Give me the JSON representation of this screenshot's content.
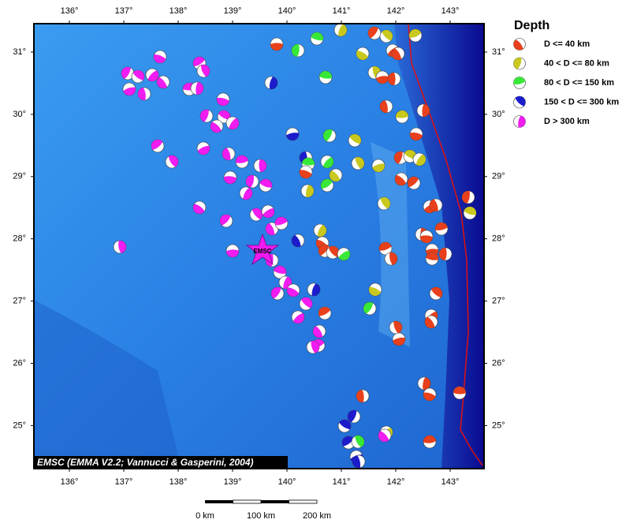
{
  "map": {
    "lon_labels": [
      "136°",
      "137°",
      "138°",
      "139°",
      "140°",
      "141°",
      "142°",
      "143°"
    ],
    "lat_labels": [
      "31°",
      "30°",
      "29°",
      "28°",
      "27°",
      "26°",
      "25°"
    ],
    "legend": {
      "title": "Depth",
      "items": [
        "D <= 40 km",
        "40 < D <= 80 km",
        "80 < D <= 150 km",
        "150 < D <= 300 km",
        "D > 300 km"
      ]
    },
    "epicenter_label": "EMSC",
    "credit": "EMSC (EMMA V2.2; Vannucci & Gasperini, 2004)",
    "scale_labels": [
      "0 km",
      "100 km",
      "200 km"
    ]
  }
}
